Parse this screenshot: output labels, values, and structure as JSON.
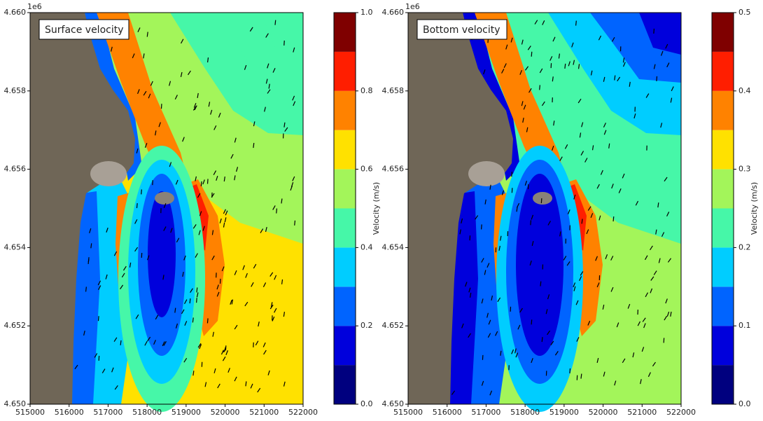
{
  "chart_data": [
    {
      "type": "contour",
      "annotation": "Surface velocity",
      "colorbar_label": "Velocity (m/s)",
      "offset_label": "1e6",
      "xlim": [
        515000,
        522000
      ],
      "xticks": [
        515000,
        516000,
        517000,
        518000,
        519000,
        520000,
        521000,
        522000
      ],
      "ylim": [
        4650000,
        4660000
      ],
      "yticks": [
        {
          "value": 4650000,
          "label": "4.650"
        },
        {
          "value": 4652000,
          "label": "4.652"
        },
        {
          "value": 4654000,
          "label": "4.654"
        },
        {
          "value": 4656000,
          "label": "4.656"
        },
        {
          "value": 4658000,
          "label": "4.658"
        },
        {
          "value": 4660000,
          "label": "4.660"
        }
      ],
      "clim": [
        0,
        1.0
      ],
      "cticks": [
        {
          "value": 0,
          "label": "0.0"
        },
        0.2,
        0.4,
        0.6,
        0.8,
        {
          "value": 1.0,
          "label": "1.0"
        }
      ],
      "levels": [
        0,
        0.1,
        0.2,
        0.3,
        0.4,
        0.5,
        0.6,
        0.7,
        0.8,
        0.9,
        1.0
      ],
      "colors": [
        "#00007f",
        "#0000dc",
        "#0064ff",
        "#00cdff",
        "#46f7a8",
        "#a3f55a",
        "#ffe100",
        "#ff8200",
        "#ff1e00",
        "#7f0000"
      ]
    },
    {
      "type": "contour",
      "annotation": "Bottom velocity",
      "colorbar_label": "Velocity (m/s)",
      "offset_label": "1e6",
      "xlim": [
        515000,
        522000
      ],
      "xticks": [
        515000,
        516000,
        517000,
        518000,
        519000,
        520000,
        521000,
        522000
      ],
      "ylim": [
        4650000,
        4660000
      ],
      "yticks": [
        {
          "value": 4650000,
          "label": "4.650"
        },
        {
          "value": 4652000,
          "label": "4.652"
        },
        {
          "value": 4654000,
          "label": "4.654"
        },
        {
          "value": 4656000,
          "label": "4.656"
        },
        {
          "value": 4658000,
          "label": "4.658"
        },
        {
          "value": 4660000,
          "label": "4.660"
        }
      ],
      "clim": [
        0,
        0.5
      ],
      "cticks": [
        {
          "value": 0,
          "label": "0.0"
        },
        0.1,
        0.2,
        0.3,
        0.4,
        0.5
      ],
      "levels": [
        0,
        0.05,
        0.1,
        0.15,
        0.2,
        0.25,
        0.3,
        0.35,
        0.4,
        0.45,
        0.5
      ],
      "colors": [
        "#00007f",
        "#0000dc",
        "#0064ff",
        "#00cdff",
        "#46f7a8",
        "#a3f55a",
        "#ffe100",
        "#ff8200",
        "#ff1e00",
        "#7f0000"
      ]
    }
  ]
}
